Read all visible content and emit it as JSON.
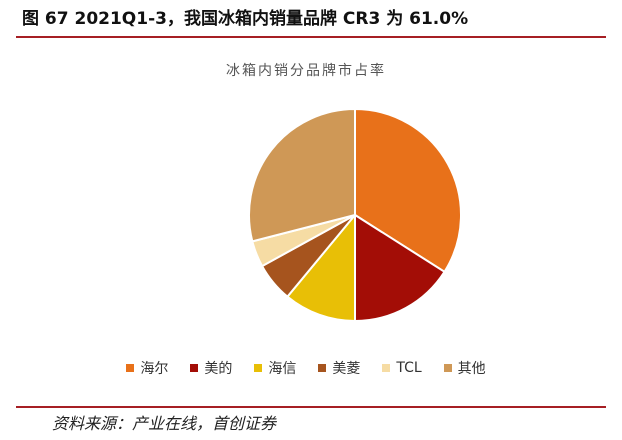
{
  "figure_title": "图  67 2021Q1-3，我国冰箱内销量品牌 CR3 为 61.0%",
  "source_note": "资料来源：产业在线，首创证券",
  "chart_data": {
    "type": "pie",
    "title": "冰箱内销分品牌市占率",
    "legend_position": "bottom",
    "slices": [
      {
        "label": "海尔",
        "value": 34.0,
        "color": "#e8711a"
      },
      {
        "label": "美的",
        "value": 16.0,
        "color": "#a30d06"
      },
      {
        "label": "海信",
        "value": 11.0,
        "color": "#e8bf06"
      },
      {
        "label": "美菱",
        "value": 6.0,
        "color": "#a6541e"
      },
      {
        "label": "TCL",
        "value": 4.0,
        "color": "#f6dca4"
      },
      {
        "label": "其他",
        "value": 29.0,
        "color": "#cf9856"
      }
    ]
  }
}
